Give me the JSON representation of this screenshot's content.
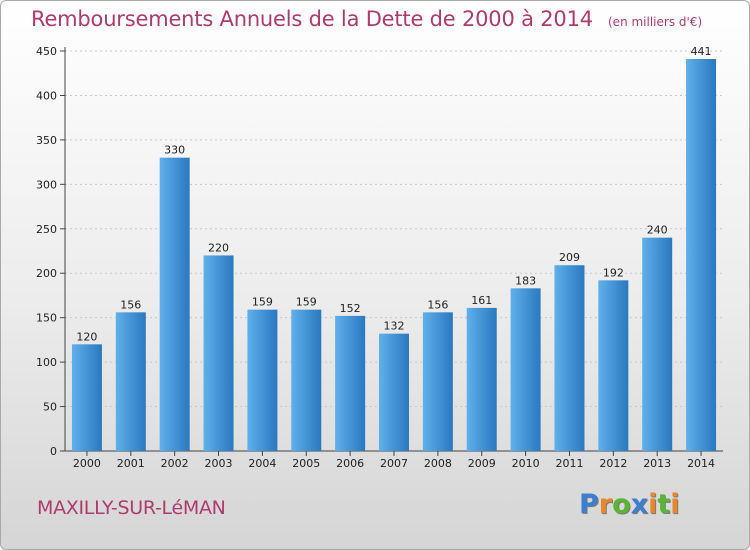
{
  "chart_data": {
    "type": "bar",
    "title": "Remboursements Annuels de la Dette de 2000 à 2014",
    "subtitle": "(en milliers d'€)",
    "categories": [
      "2000",
      "2001",
      "2002",
      "2003",
      "2004",
      "2005",
      "2006",
      "2007",
      "2008",
      "2009",
      "2010",
      "2011",
      "2012",
      "2013",
      "2014"
    ],
    "values": [
      120,
      156,
      330,
      220,
      159,
      159,
      152,
      132,
      156,
      161,
      183,
      209,
      192,
      240,
      441
    ],
    "ylim": [
      0,
      450
    ],
    "yticks": [
      0,
      50,
      100,
      150,
      200,
      250,
      300,
      350,
      400,
      450
    ],
    "grid": true,
    "colors": {
      "bar_light": "#5fb0ea",
      "bar_dark": "#2a78c0",
      "accent": "#b03a6e"
    }
  },
  "footer": {
    "place_name": "MAXILLY-SUR-LéMAN",
    "logo_letters": [
      "P",
      "r",
      "o",
      "x",
      "i",
      "t",
      "i"
    ],
    "logo_colors": [
      "#3a7fd0",
      "#e8862a",
      "#5ab534",
      "#3a7fd0",
      "#e8862a",
      "#5ab534",
      "#e8862a"
    ]
  }
}
